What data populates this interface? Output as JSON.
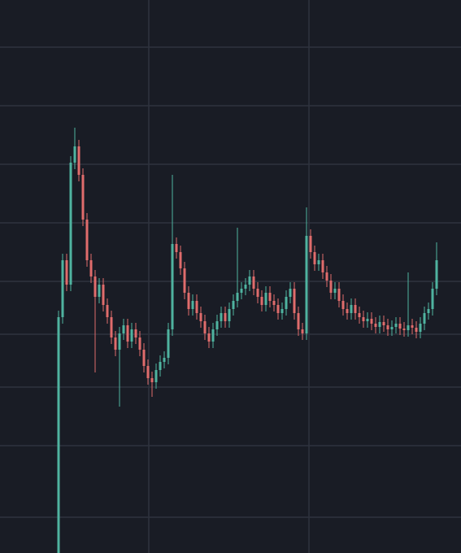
{
  "chart_data": {
    "type": "candlestick",
    "up_color": "#4fb3a0",
    "down_color": "#e06c6c",
    "background": "#191c25",
    "grid_color": "#2f333e",
    "grid": true,
    "xlim": [
      -14.4,
      99
    ],
    "xticks": [
      22.2,
      61.6
    ],
    "ylim": [
      0,
      680
    ],
    "yticks": [
      622,
      550,
      478,
      406,
      334,
      269,
      204,
      132,
      44
    ],
    "x": [
      0,
      1,
      2,
      3,
      4,
      5,
      6,
      7,
      8,
      9,
      10,
      11,
      12,
      13,
      14,
      15,
      16,
      17,
      18,
      19,
      20,
      21,
      22,
      23,
      24,
      25,
      26,
      27,
      28,
      29,
      30,
      31,
      32,
      33,
      34,
      35,
      36,
      37,
      38,
      39,
      40,
      41,
      42,
      43,
      44,
      45,
      46,
      47,
      48,
      49,
      50,
      51,
      52,
      53,
      54,
      55,
      56,
      57,
      58,
      59,
      60,
      61,
      62,
      63,
      64,
      65,
      66,
      67,
      68,
      69,
      70,
      71,
      72,
      73,
      74,
      75,
      76,
      77,
      78,
      79,
      80,
      81,
      82,
      83,
      84,
      85,
      86,
      87,
      88,
      89,
      90,
      91,
      92,
      93
    ],
    "open": [
      0,
      290,
      360,
      330,
      480,
      500,
      465,
      410,
      360,
      340,
      315,
      330,
      305,
      290,
      265,
      250,
      270,
      280,
      260,
      275,
      265,
      250,
      230,
      215,
      210,
      225,
      235,
      240,
      275,
      380,
      370,
      350,
      320,
      300,
      310,
      295,
      285,
      270,
      260,
      275,
      285,
      295,
      285,
      300,
      310,
      320,
      325,
      330,
      340,
      325,
      315,
      305,
      320,
      310,
      305,
      295,
      300,
      315,
      325,
      295,
      275,
      270,
      390,
      370,
      355,
      360,
      345,
      335,
      320,
      325,
      310,
      300,
      295,
      305,
      295,
      290,
      285,
      288,
      282,
      278,
      284,
      280,
      275,
      278,
      282,
      276,
      274,
      280,
      277,
      272,
      282,
      295,
      300,
      325
    ],
    "high": [
      298,
      368,
      368,
      488,
      523,
      508,
      473,
      418,
      368,
      348,
      338,
      338,
      313,
      298,
      273,
      278,
      288,
      288,
      283,
      283,
      273,
      258,
      238,
      223,
      233,
      243,
      248,
      283,
      465,
      388,
      378,
      358,
      328,
      318,
      318,
      303,
      293,
      278,
      283,
      293,
      303,
      303,
      308,
      318,
      400,
      333,
      338,
      348,
      348,
      333,
      323,
      328,
      328,
      318,
      313,
      308,
      323,
      333,
      333,
      303,
      283,
      425,
      398,
      378,
      368,
      368,
      353,
      343,
      333,
      333,
      318,
      308,
      313,
      313,
      303,
      298,
      296,
      296,
      290,
      292,
      292,
      288,
      286,
      290,
      290,
      284,
      345,
      288,
      285,
      290,
      303,
      308,
      333,
      382
    ],
    "low": [
      0,
      282,
      322,
      322,
      472,
      457,
      402,
      352,
      332,
      222,
      307,
      297,
      282,
      257,
      242,
      180,
      262,
      252,
      252,
      257,
      242,
      222,
      207,
      192,
      202,
      217,
      227,
      232,
      267,
      362,
      342,
      312,
      292,
      292,
      287,
      277,
      262,
      252,
      252,
      267,
      277,
      277,
      277,
      292,
      302,
      312,
      317,
      322,
      317,
      307,
      297,
      297,
      302,
      297,
      287,
      287,
      292,
      307,
      287,
      267,
      262,
      262,
      362,
      347,
      347,
      337,
      327,
      312,
      312,
      302,
      292,
      287,
      287,
      287,
      282,
      277,
      277,
      274,
      270,
      270,
      272,
      267,
      267,
      270,
      268,
      266,
      266,
      269,
      264,
      264,
      274,
      287,
      292,
      317
    ],
    "close": [
      290,
      360,
      330,
      480,
      500,
      465,
      410,
      360,
      340,
      315,
      330,
      305,
      290,
      265,
      250,
      270,
      280,
      260,
      275,
      265,
      250,
      230,
      215,
      210,
      225,
      235,
      240,
      275,
      380,
      370,
      350,
      320,
      300,
      310,
      295,
      285,
      270,
      260,
      275,
      285,
      295,
      285,
      300,
      310,
      320,
      325,
      330,
      340,
      325,
      315,
      305,
      320,
      310,
      305,
      295,
      300,
      315,
      325,
      295,
      275,
      270,
      390,
      370,
      355,
      360,
      345,
      335,
      320,
      325,
      310,
      300,
      295,
      305,
      295,
      290,
      285,
      288,
      282,
      278,
      284,
      280,
      275,
      278,
      282,
      276,
      274,
      280,
      277,
      272,
      282,
      295,
      300,
      325,
      360
    ]
  }
}
